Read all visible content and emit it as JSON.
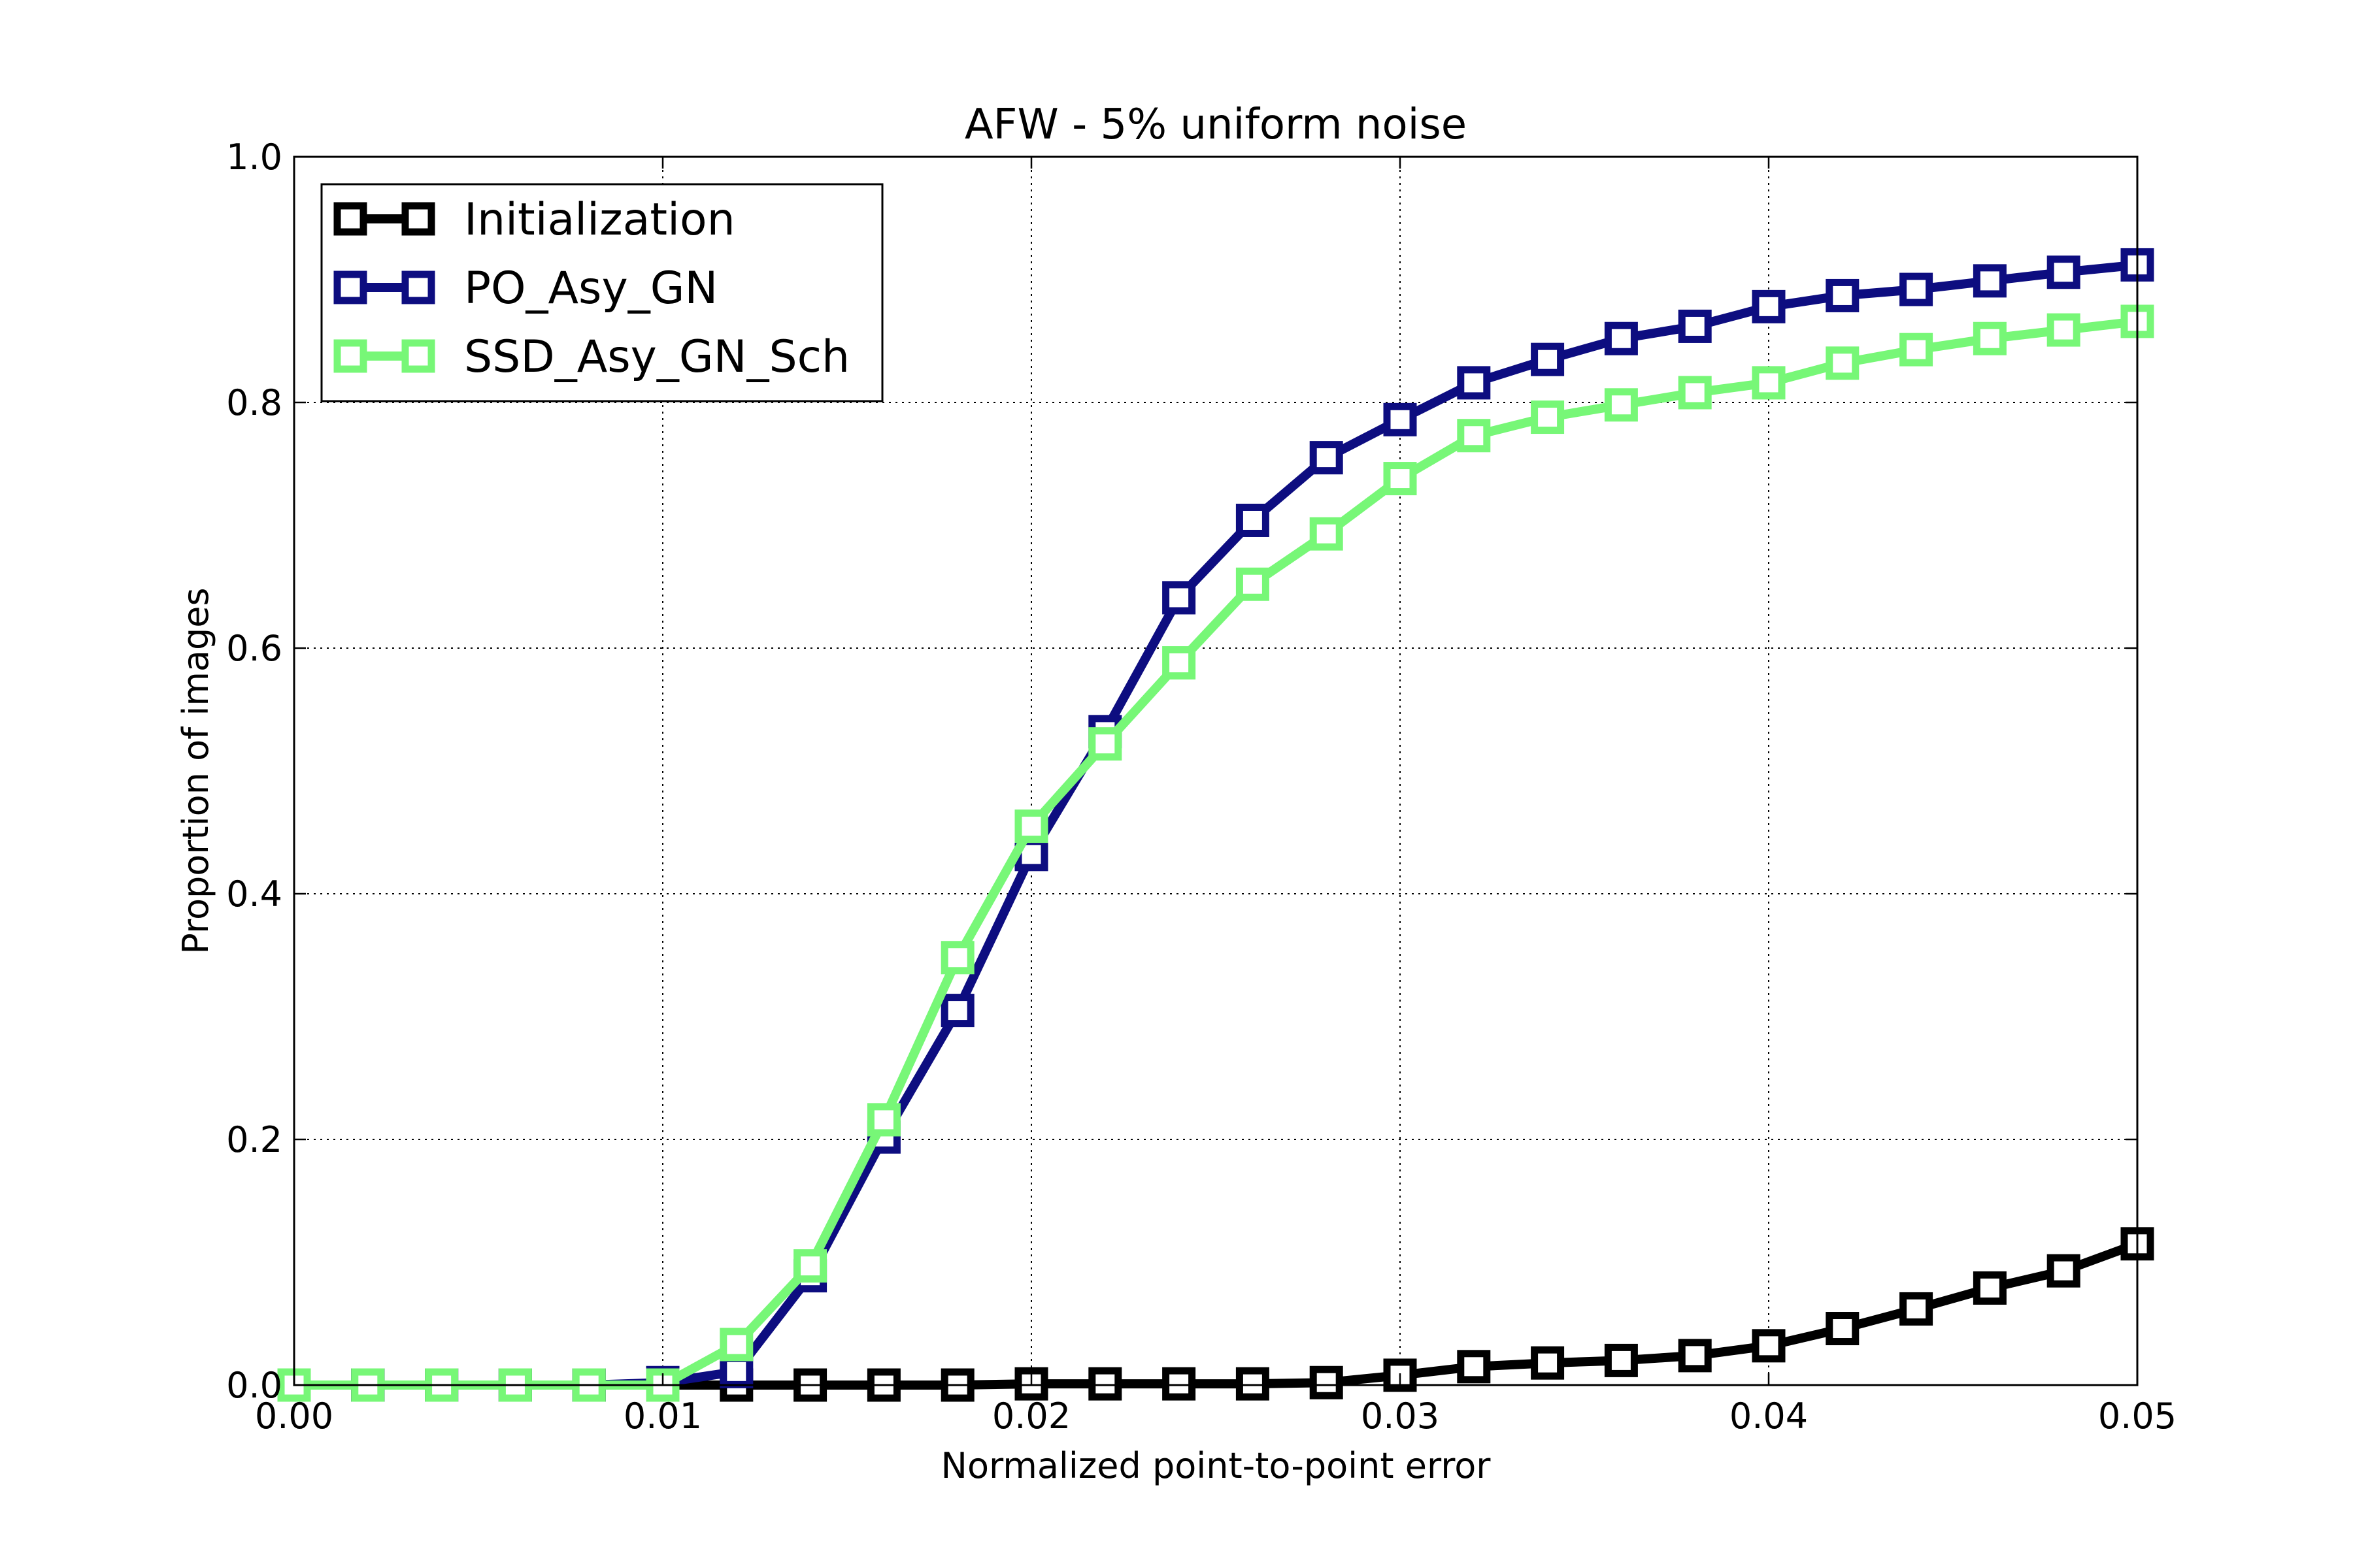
{
  "chart_data": {
    "type": "line",
    "title": "AFW - 5% uniform noise",
    "xlabel": "Normalized point-to-point error",
    "ylabel": "Proportion of images",
    "xlim": [
      0.0,
      0.05
    ],
    "ylim": [
      0.0,
      1.0
    ],
    "x_ticks": [
      "0.00",
      "0.01",
      "0.02",
      "0.03",
      "0.04",
      "0.05"
    ],
    "y_ticks": [
      "0.0",
      "0.2",
      "0.4",
      "0.6",
      "0.8",
      "1.0"
    ],
    "grid": true,
    "legend_position": "top-left",
    "x": [
      0.0,
      0.002,
      0.004,
      0.006,
      0.008,
      0.01,
      0.012,
      0.014,
      0.016,
      0.018,
      0.02,
      0.022,
      0.024,
      0.026,
      0.028,
      0.03,
      0.032,
      0.034,
      0.036,
      0.038,
      0.04,
      0.042,
      0.044,
      0.046,
      0.048,
      0.05
    ],
    "series": [
      {
        "name": "Initialization",
        "color": "#000000",
        "marker": "square",
        "values": [
          0.0,
          0.0,
          0.0,
          0.0,
          0.0,
          0.0,
          0.0,
          0.0,
          0.0,
          0.0,
          0.001,
          0.001,
          0.001,
          0.001,
          0.002,
          0.008,
          0.015,
          0.018,
          0.02,
          0.024,
          0.032,
          0.046,
          0.062,
          0.079,
          0.093,
          0.115
        ]
      },
      {
        "name": "PO_Asy_GN",
        "color": "#0d0d80",
        "marker": "square",
        "values": [
          0.0,
          0.0,
          0.0,
          0.0,
          0.0,
          0.002,
          0.011,
          0.089,
          0.202,
          0.305,
          0.432,
          0.532,
          0.641,
          0.704,
          0.755,
          0.786,
          0.816,
          0.835,
          0.852,
          0.862,
          0.878,
          0.887,
          0.892,
          0.899,
          0.906,
          0.912
        ]
      },
      {
        "name": "SSD_Asy_GN_Sch",
        "color": "#77f777",
        "marker": "square",
        "values": [
          0.0,
          0.0,
          0.0,
          0.0,
          0.0,
          0.0,
          0.033,
          0.097,
          0.216,
          0.348,
          0.455,
          0.522,
          0.588,
          0.652,
          0.693,
          0.738,
          0.773,
          0.788,
          0.798,
          0.808,
          0.816,
          0.832,
          0.843,
          0.852,
          0.859,
          0.866
        ]
      }
    ]
  }
}
